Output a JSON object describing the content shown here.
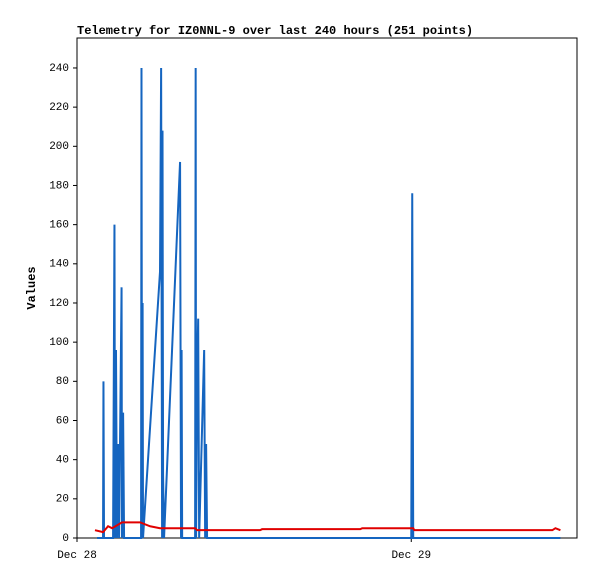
{
  "chart_data": {
    "type": "line",
    "title": "Telemetry for IZ0NNL-9 over last 240 hours (251 points)",
    "y_label": "Values",
    "xlim": [
      0,
      35.9
    ],
    "xticks": [
      {
        "value": 0,
        "label": "Dec 28"
      },
      {
        "value": 24,
        "label": "Dec 29"
      }
    ],
    "ylim": [
      0,
      255.3
    ],
    "yticks": [
      0,
      20,
      40,
      60,
      80,
      100,
      120,
      140,
      160,
      180,
      200,
      220,
      240
    ],
    "series": [
      {
        "color": "#1565c0",
        "x": [
          1.44,
          1.87,
          1.9,
          1.94,
          2.59,
          2.66,
          2.69,
          2.73,
          2.8,
          2.87,
          2.95,
          3.02,
          3.2,
          3.23,
          3.31,
          3.38,
          4.6,
          4.63,
          4.67,
          4.71,
          4.74,
          5.96,
          6.04,
          6.11,
          6.14,
          6.18,
          6.25,
          7.4,
          7.47,
          7.51,
          7.55,
          8.48,
          8.52,
          8.55,
          8.62,
          8.7,
          8.77,
          9.13,
          9.2,
          9.27,
          9.34,
          24.0,
          24.07,
          24.14,
          34.71
        ],
        "values": [
          0,
          0,
          80,
          0,
          0,
          112,
          160,
          0,
          96,
          0,
          48,
          0,
          128,
          0,
          64,
          0,
          0,
          240,
          0,
          120,
          0,
          136,
          240,
          0,
          208,
          32,
          0,
          192,
          0,
          96,
          0,
          0,
          240,
          0,
          80,
          112,
          0,
          96,
          0,
          48,
          0,
          0,
          176,
          0,
          0
        ]
      },
      {
        "color": "#e00000",
        "x": [
          1.29,
          1.87,
          2.23,
          2.52,
          3.23,
          4.53,
          5.25,
          5.96,
          8.48,
          8.62,
          13.15,
          13.29,
          20.34,
          20.48,
          24.14,
          24.22,
          34.13,
          34.35,
          34.71
        ],
        "values": [
          4,
          3,
          6,
          5,
          8,
          8,
          6,
          5,
          5,
          4,
          4,
          4.5,
          4.5,
          5,
          5,
          4,
          4,
          5,
          4
        ]
      }
    ]
  }
}
